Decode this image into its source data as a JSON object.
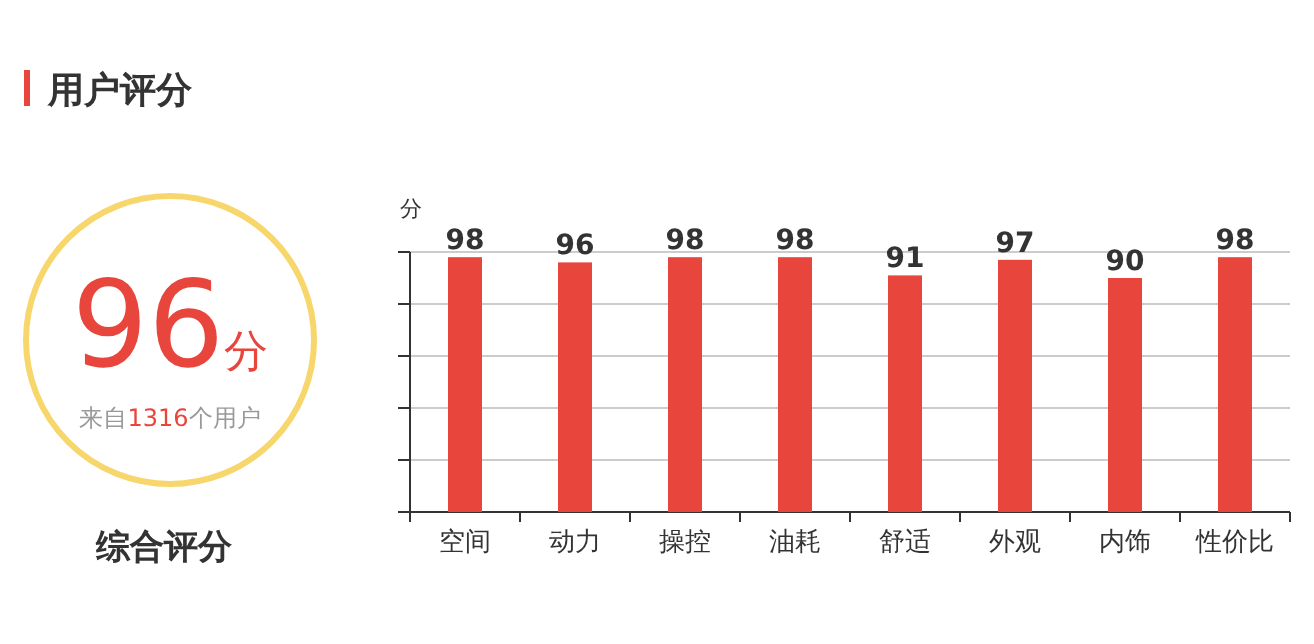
{
  "chart_data": [
    {
      "type": "other",
      "title": "用户评分",
      "annotations": [
        "96分",
        "来自1316个用户",
        "综合评分"
      ]
    },
    {
      "type": "bar",
      "ylabel": "分",
      "categories": [
        "空间",
        "动力",
        "操控",
        "油耗",
        "舒适",
        "外观",
        "内饰",
        "性价比"
      ],
      "values": [
        98,
        96,
        98,
        98,
        91,
        97,
        90,
        98
      ],
      "color": "#e8453c",
      "ylim": [
        0,
        100
      ],
      "yticks": [
        {
          "value": 0,
          "label": null
        },
        {
          "value": 20,
          "label": null
        },
        {
          "value": 40,
          "label": null
        },
        {
          "value": 60,
          "label": null
        },
        {
          "value": 80,
          "label": null
        },
        {
          "value": 100,
          "label": null
        }
      ],
      "tick_labels": "x",
      "grid": "y",
      "data_labels": true
    }
  ]
}
